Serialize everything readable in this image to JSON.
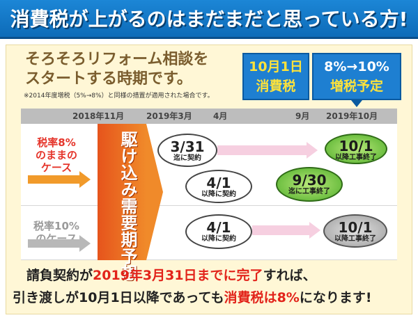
{
  "banner": {
    "title": "消費税が上がるのはまだまだと思っている方!"
  },
  "lead": {
    "line1": "そろそろリフォーム相談を",
    "line2": "スタートする時期です。"
  },
  "note": "※2014年度増税（5%→8%）と同様の措置が適用された場合です。",
  "tax_boxes": {
    "date_line1": "10月1日",
    "date_line2": "消費税",
    "rate_line1": "8%→10%",
    "rate_line2": "増税予定"
  },
  "timeline": {
    "labels": [
      "2018年11月",
      "2019年3月",
      "4月",
      "9月",
      "2019年10月"
    ]
  },
  "cases": {
    "case1_line1": "税率8%",
    "case1_line2": "のままの",
    "case1_line3": "ケース",
    "case2_line1": "税率10%",
    "case2_line2": "のケース"
  },
  "rush": {
    "label": "駆け込み需要期予想"
  },
  "ovals": {
    "o331_big": "3/31",
    "o331_small": "迄に契約",
    "o41a_big": "4/1",
    "o41a_small": "以降に契約",
    "o930_big": "9/30",
    "o930_small": "迄に工事終了",
    "o101g_big": "10/1",
    "o101g_small": "以降工事終了",
    "o41b_big": "4/1",
    "o41b_small": "以降に契約",
    "o101gray_big": "10/1",
    "o101gray_small": "以降工事終了"
  },
  "bottom": {
    "line1_a": "請負契約が",
    "line1_b": "2019年3月31日までに完了",
    "line1_c": "すれば、",
    "line2_a": "引き渡しが10月1日以降であっても",
    "line2_b": "消費税は8%",
    "line2_c": "になります!"
  },
  "colors": {
    "banner": "#1c86d6",
    "accent_red": "#e2231a",
    "tax_yellow": "#fde23b",
    "rush_orange": "#f08a2a",
    "green": "#4fae2a"
  }
}
